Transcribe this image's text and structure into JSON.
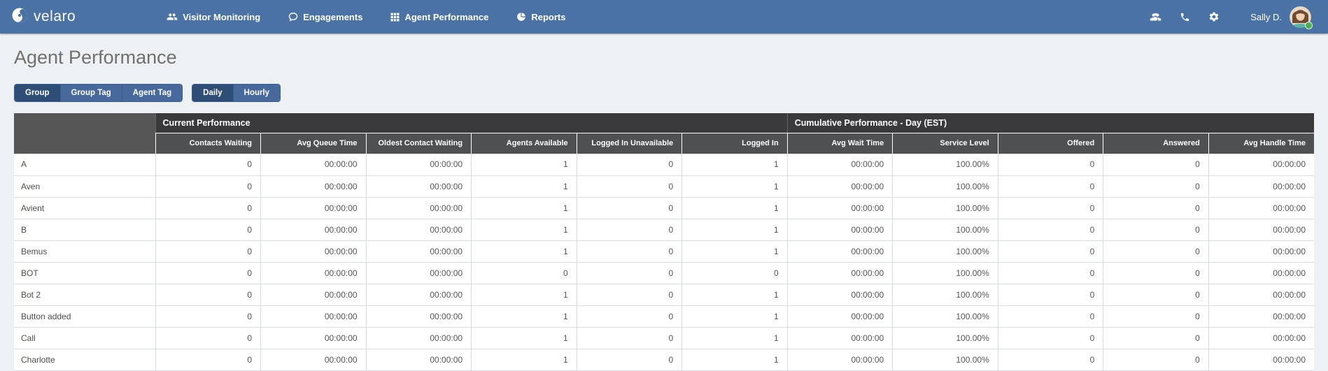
{
  "colors": {
    "navbar_blue": "#4a72a4",
    "button_inactive": "#47699b",
    "button_active": "#2e4e76",
    "header_group_bg": "#3a3a3c",
    "header_col_bg": "#4f5052",
    "header_corner_bg": "#565656",
    "status_green": "#4caf50",
    "page_bg": "#eef1f3"
  },
  "navbar": {
    "brand": "velaro",
    "items": [
      {
        "label": "Visitor Monitoring",
        "icon": "users-icon"
      },
      {
        "label": "Engagements",
        "icon": "chat-bubble-icon"
      },
      {
        "label": "Agent Performance",
        "icon": "grid-icon"
      },
      {
        "label": "Reports",
        "icon": "pie-chart-icon"
      }
    ],
    "util_icons": [
      {
        "icon": "contacts-icon"
      },
      {
        "icon": "phone-icon"
      },
      {
        "icon": "gear-icon"
      }
    ],
    "user": {
      "name": "Sally D.",
      "status": "online"
    }
  },
  "page": {
    "title": "Agent Performance"
  },
  "toolbar": {
    "groups": [
      {
        "name": "dimension",
        "buttons": [
          {
            "label": "Group",
            "active": true
          },
          {
            "label": "Group Tag",
            "active": false
          },
          {
            "label": "Agent Tag",
            "active": false
          }
        ]
      },
      {
        "name": "interval",
        "buttons": [
          {
            "label": "Daily",
            "active": true
          },
          {
            "label": "Hourly",
            "active": false
          }
        ]
      }
    ]
  },
  "table": {
    "group_headers": [
      {
        "label": "Current Performance",
        "colspan": 6
      },
      {
        "label": "Cumulative Performance - Day (EST)",
        "colspan": 5
      }
    ],
    "columns": [
      "Contacts Waiting",
      "Avg Queue Time",
      "Oldest Contact Waiting",
      "Agents Available",
      "Logged In Unavailable",
      "Logged In",
      "Avg Wait Time",
      "Service Level",
      "Offered",
      "Answered",
      "Avg Handle Time"
    ],
    "rows": [
      {
        "name": "A",
        "values": [
          "0",
          "00:00:00",
          "00:00:00",
          "1",
          "0",
          "1",
          "00:00:00",
          "100.00%",
          "0",
          "0",
          "00:00:00"
        ]
      },
      {
        "name": "Aven",
        "values": [
          "0",
          "00:00:00",
          "00:00:00",
          "1",
          "0",
          "1",
          "00:00:00",
          "100.00%",
          "0",
          "0",
          "00:00:00"
        ]
      },
      {
        "name": "Avient",
        "values": [
          "0",
          "00:00:00",
          "00:00:00",
          "1",
          "0",
          "1",
          "00:00:00",
          "100.00%",
          "0",
          "0",
          "00:00:00"
        ]
      },
      {
        "name": "B",
        "values": [
          "0",
          "00:00:00",
          "00:00:00",
          "1",
          "0",
          "1",
          "00:00:00",
          "100.00%",
          "0",
          "0",
          "00:00:00"
        ]
      },
      {
        "name": "Bemus",
        "values": [
          "0",
          "00:00:00",
          "00:00:00",
          "1",
          "0",
          "1",
          "00:00:00",
          "100.00%",
          "0",
          "0",
          "00:00:00"
        ]
      },
      {
        "name": "BOT",
        "values": [
          "0",
          "00:00:00",
          "00:00:00",
          "0",
          "0",
          "0",
          "00:00:00",
          "100.00%",
          "0",
          "0",
          "00:00:00"
        ]
      },
      {
        "name": "Bot 2",
        "values": [
          "0",
          "00:00:00",
          "00:00:00",
          "1",
          "0",
          "1",
          "00:00:00",
          "100.00%",
          "0",
          "0",
          "00:00:00"
        ]
      },
      {
        "name": "Button added",
        "values": [
          "0",
          "00:00:00",
          "00:00:00",
          "1",
          "0",
          "1",
          "00:00:00",
          "100.00%",
          "0",
          "0",
          "00:00:00"
        ]
      },
      {
        "name": "Call",
        "values": [
          "0",
          "00:00:00",
          "00:00:00",
          "1",
          "0",
          "1",
          "00:00:00",
          "100.00%",
          "0",
          "0",
          "00:00:00"
        ]
      },
      {
        "name": "Charlotte",
        "values": [
          "0",
          "00:00:00",
          "00:00:00",
          "1",
          "0",
          "1",
          "00:00:00",
          "100.00%",
          "0",
          "0",
          "00:00:00"
        ]
      }
    ]
  }
}
